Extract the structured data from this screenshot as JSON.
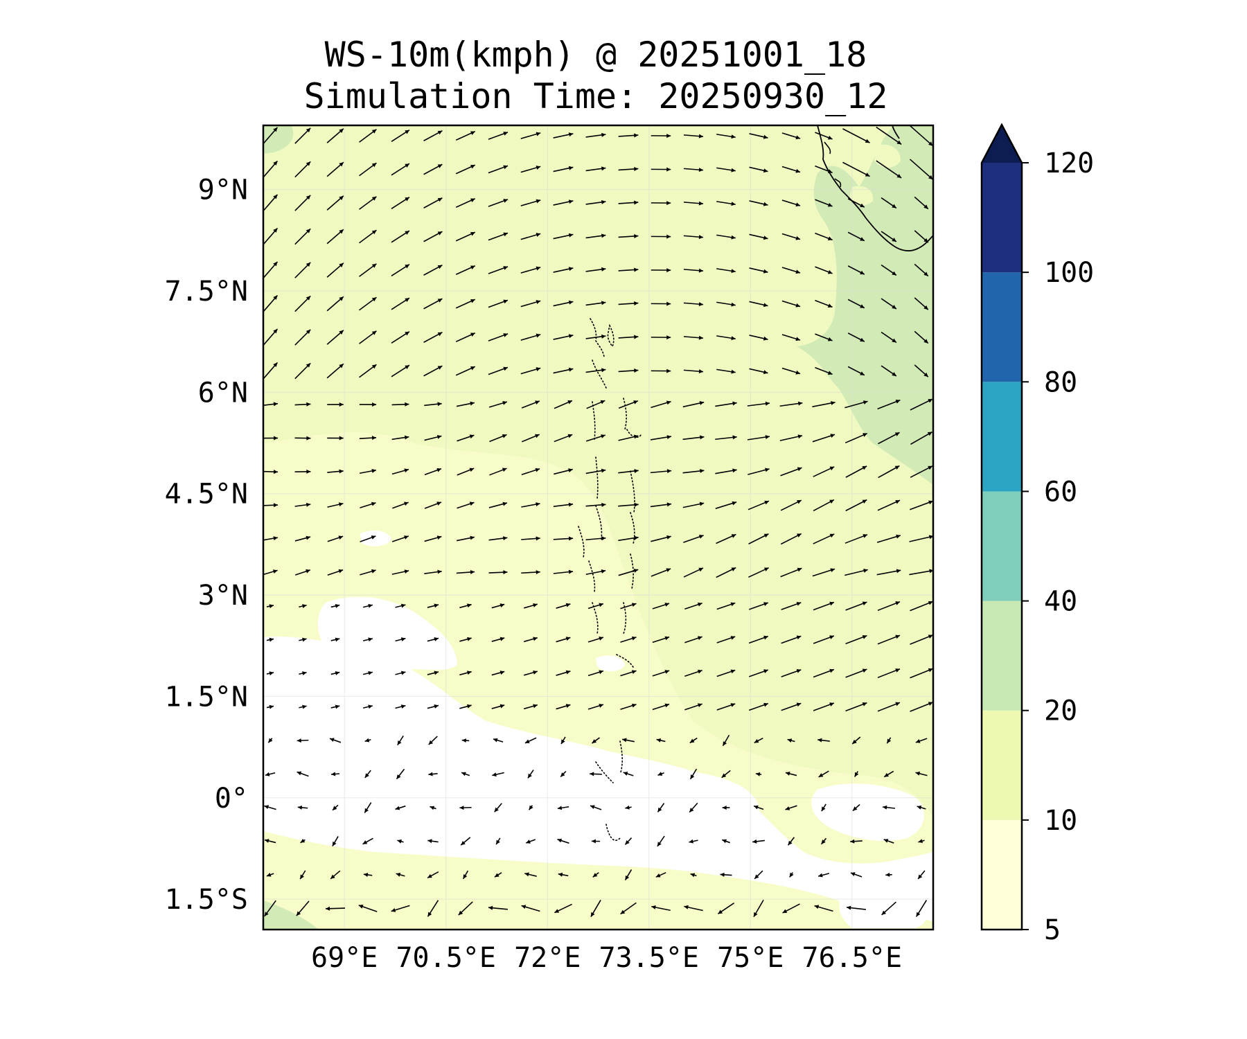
{
  "title": {
    "line1": "WS-10m(kmph) @ 20251001_18",
    "line2": "Simulation Time: 20250930_12"
  },
  "chart_data": {
    "type": "heatmap",
    "variable": "WS-10m(kmph)",
    "valid_time": "20251001_18",
    "simulation_time": "20250930_12",
    "lon_range": [
      67.8,
      77.7
    ],
    "lat_range": [
      -1.95,
      9.95
    ],
    "x_ticks": [
      {
        "value": 69,
        "label": "69°E"
      },
      {
        "value": 70.5,
        "label": "70.5°E"
      },
      {
        "value": 72,
        "label": "72°E"
      },
      {
        "value": 73.5,
        "label": "73.5°E"
      },
      {
        "value": 75,
        "label": "75°E"
      },
      {
        "value": 76.5,
        "label": "76.5°E"
      }
    ],
    "y_ticks": [
      {
        "value": 9,
        "label": "9°N"
      },
      {
        "value": 7.5,
        "label": "7.5°N"
      },
      {
        "value": 6,
        "label": "6°N"
      },
      {
        "value": 4.5,
        "label": "4.5°N"
      },
      {
        "value": 3,
        "label": "3°N"
      },
      {
        "value": 1.5,
        "label": "1.5°N"
      },
      {
        "value": 0,
        "label": "0°"
      },
      {
        "value": -1.5,
        "label": "1.5°S"
      }
    ],
    "grid": true,
    "colorbar": {
      "orientation": "vertical",
      "placement": "right",
      "extend": "max",
      "levels": [
        {
          "value": 5,
          "label": "5"
        },
        {
          "value": 10,
          "label": "10"
        },
        {
          "value": 20,
          "label": "20"
        },
        {
          "value": 40,
          "label": "40"
        },
        {
          "value": 60,
          "label": "60"
        },
        {
          "value": 80,
          "label": "80"
        },
        {
          "value": 100,
          "label": "100"
        },
        {
          "value": 120,
          "label": "120"
        }
      ],
      "colors": [
        "#ffffd9",
        "#edf8b1",
        "#c7e9b4",
        "#7fcdbb",
        "#2ca4c3",
        "#2166ac",
        "#1d2f7e"
      ],
      "extend_color": "#0b1d51"
    },
    "field_regions": [
      {
        "range": "5-10",
        "color": "#f7fcc8",
        "where": "southwest and central-south ocean, around 1.5°N to 1.5°S"
      },
      {
        "range": "10-20",
        "color": "#edf8b1",
        "where": "most of the domain"
      },
      {
        "range": "20-40",
        "color": "#d2ebb6",
        "where": "east of 76°E north of 5°N, along Sri Lanka and southern India coasts"
      }
    ],
    "wind_regions": [
      {
        "lat_min": 6.5,
        "direction": "northeast to east, curving southeast near India",
        "speed": "moderate"
      },
      {
        "lat_min": 3,
        "lat_max": 6.5,
        "direction": "east",
        "speed": "moderate"
      },
      {
        "lat_min": 0.5,
        "lat_max": 3,
        "direction": "east to east-northeast",
        "speed": "light"
      },
      {
        "lat_max": 0.5,
        "direction": "west to southwest",
        "speed": "very light"
      }
    ],
    "features": [
      {
        "name": "Maldives atolls",
        "lon": 73.5,
        "lat_range": [
          -0.7,
          7.1
        ],
        "style": "dotted"
      },
      {
        "name": "India and Sri Lanka coastline",
        "lon_range": [
          76.2,
          77.7
        ],
        "lat_range": [
          8.1,
          9.95
        ],
        "style": "solid"
      }
    ]
  }
}
